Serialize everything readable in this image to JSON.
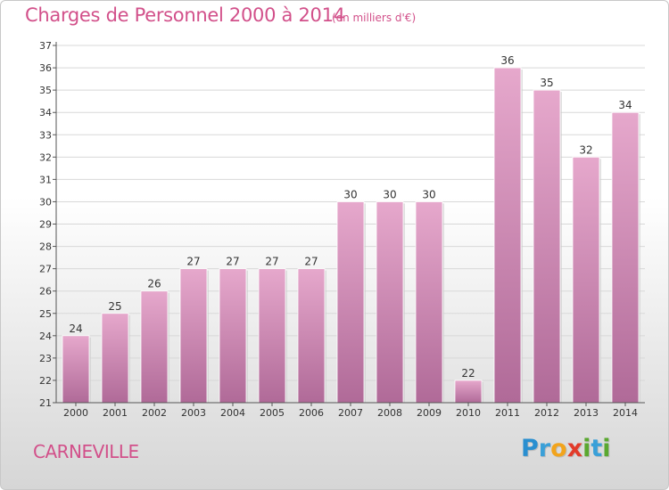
{
  "title": "Charges de Personnel 2000 à 2014",
  "subtitle": "(en milliers d'€)",
  "location": "CARNEVILLE",
  "logo": {
    "letters": [
      "P",
      "r",
      "o",
      "x",
      "i",
      "t",
      "i"
    ],
    "colors": [
      "#2a8fd0",
      "#3aa0d8",
      "#f2a41c",
      "#e23b2a",
      "#5aa830",
      "#3aa0d8",
      "#5aa830"
    ]
  },
  "colors": {
    "title": "#d2508a",
    "bar_top": "#e6a8cc",
    "bar_bottom": "#b06a98"
  },
  "chart_data": {
    "type": "bar",
    "title": "Charges de Personnel 2000 à 2014",
    "subtitle": "(en milliers d'€)",
    "categories": [
      "2000",
      "2001",
      "2002",
      "2003",
      "2004",
      "2005",
      "2006",
      "2007",
      "2008",
      "2009",
      "2010",
      "2011",
      "2012",
      "2013",
      "2014"
    ],
    "values": [
      24,
      25,
      26,
      27,
      27,
      27,
      27,
      30,
      30,
      30,
      22,
      36,
      35,
      32,
      34
    ],
    "ylim": [
      21,
      37
    ],
    "yticks": [
      21,
      22,
      23,
      24,
      25,
      26,
      27,
      28,
      29,
      30,
      31,
      32,
      33,
      34,
      35,
      36,
      37
    ],
    "grid": true,
    "data_labels": true
  }
}
